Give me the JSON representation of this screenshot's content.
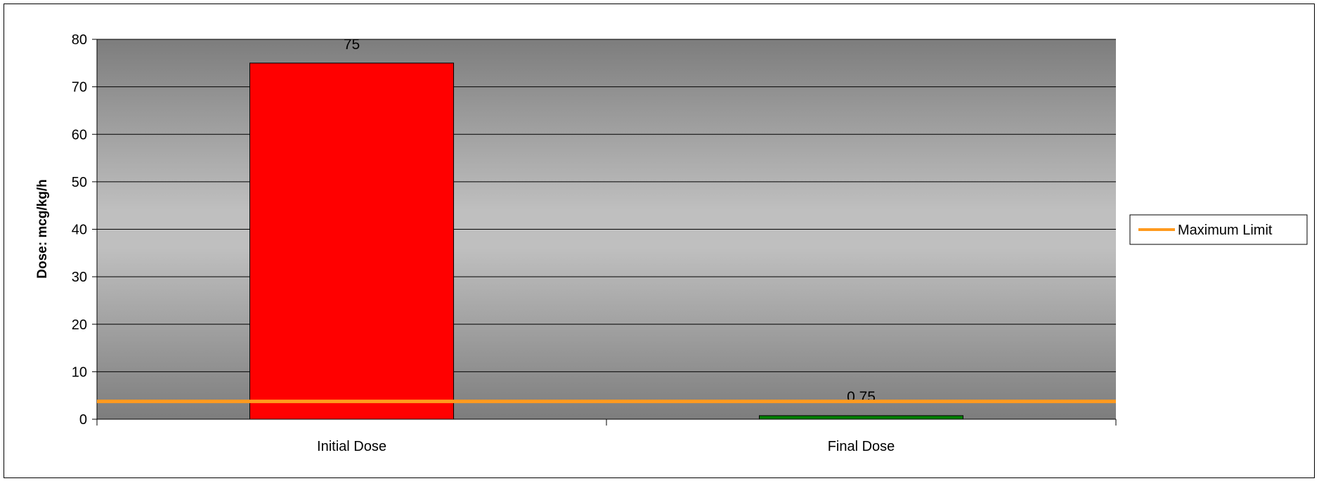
{
  "chart_data": {
    "type": "bar",
    "title": "",
    "xlabel": "",
    "ylabel": "Dose: mcg/kg/h",
    "categories": [
      "Initial Dose",
      "Final Dose"
    ],
    "series": [
      {
        "values": [
          75,
          0.75
        ],
        "data_labels": [
          "75",
          "0.75"
        ],
        "colors": [
          "#ff0000",
          "#008000"
        ]
      }
    ],
    "reference_line": {
      "name": "Maximum Limit",
      "value": 3.75,
      "color": "#ff9a1e"
    },
    "ylim": [
      0,
      80
    ],
    "yticks": [
      0,
      10,
      20,
      30,
      40,
      50,
      60,
      70,
      80
    ],
    "ytick_labels": [
      "0",
      "10",
      "20",
      "30",
      "40",
      "50",
      "60",
      "70",
      "80"
    ],
    "grid": true,
    "legend": {
      "position": "right",
      "entries": [
        "Maximum Limit"
      ]
    }
  }
}
